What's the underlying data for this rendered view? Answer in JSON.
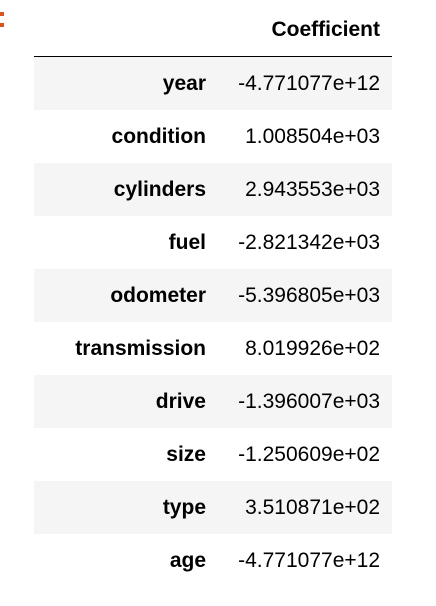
{
  "table": {
    "index_header": "",
    "columns": [
      "Coefficient"
    ],
    "rows": [
      {
        "label": "year",
        "value": "-4.771077e+12"
      },
      {
        "label": "condition",
        "value": "1.008504e+03"
      },
      {
        "label": "cylinders",
        "value": "2.943553e+03"
      },
      {
        "label": "fuel",
        "value": "-2.821342e+03"
      },
      {
        "label": "odometer",
        "value": "-5.396805e+03"
      },
      {
        "label": "transmission",
        "value": "8.019926e+02"
      },
      {
        "label": "drive",
        "value": "-1.396007e+03"
      },
      {
        "label": "size",
        "value": "-1.250609e+02"
      },
      {
        "label": "type",
        "value": "3.510871e+02"
      },
      {
        "label": "age",
        "value": "-4.771077e+12"
      }
    ]
  },
  "colors": {
    "prompt_marker": "#d9541e",
    "row_stripe": "#f5f5f5"
  }
}
